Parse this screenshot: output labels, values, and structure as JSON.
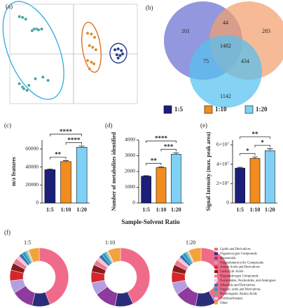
{
  "chart_data": [
    {
      "type": "scatter",
      "panel": "(a)",
      "xlim": [
        -100,
        100
      ],
      "ylim": [
        -60,
        60
      ],
      "series": [
        {
          "color": "#4aa3a0",
          "x": [
            -85,
            -80,
            -75,
            -62,
            -58,
            -55,
            -50,
            -65,
            -80,
            -78,
            -73,
            -70,
            -60,
            -48,
            -40,
            -85
          ],
          "values": [
            45,
            44,
            42,
            30,
            30,
            29,
            30,
            28,
            -40,
            -42,
            -44,
            -38,
            -30,
            -28,
            -32,
            -36
          ]
        },
        {
          "color": "#e08a2a",
          "x": [
            22,
            28,
            33,
            25,
            30,
            35,
            22,
            28,
            32,
            25
          ],
          "values": [
            25,
            24,
            20,
            10,
            8,
            5,
            -8,
            -10,
            -12,
            -18
          ]
        },
        {
          "color": "#1f3a8a",
          "x": [
            65,
            70,
            75,
            68,
            73,
            77,
            70
          ],
          "values": [
            5,
            6,
            4,
            -1,
            -2,
            0,
            -5
          ]
        }
      ]
    },
    {
      "type": "venn",
      "panel": "(b)",
      "sets": [
        {
          "name": "1:5",
          "color": "#1b1f7a",
          "circle_color": "#6a6fd0"
        },
        {
          "name": "1:10",
          "color": "#f28c1e",
          "circle_color": "#f4a06e"
        },
        {
          "name": "1:20",
          "color": "#7fd0f5",
          "circle_color": "#55c1f0"
        }
      ],
      "values": [
        101,
        283,
        1142,
        44,
        75,
        434,
        1482
      ]
    },
    {
      "type": "bar",
      "panel": "(c)",
      "ylabel": "m/z features",
      "categories": [
        "1:5",
        "1:10",
        "1:20"
      ],
      "values": [
        37000,
        46000,
        62000
      ],
      "errors": [
        800,
        1000,
        1200
      ],
      "colors": [
        "#1b1f7a",
        "#f28c1e",
        "#7fd0f5"
      ],
      "ylim": [
        0,
        70000
      ],
      "yticks": [
        0,
        20000,
        40000,
        60000
      ],
      "significance": [
        {
          "label": "**",
          "from": 0,
          "to": 1
        },
        {
          "label": "****",
          "from": 1,
          "to": 2
        },
        {
          "label": "****",
          "from": 0,
          "to": 2
        }
      ]
    },
    {
      "type": "bar",
      "panel": "(d)",
      "ylabel": "Number of metabolites identified",
      "xlabel": "Sample-Solvent Ratio",
      "categories": [
        "1:5",
        "1:10",
        "1:20"
      ],
      "values": [
        1700,
        2250,
        3100
      ],
      "errors": [
        30,
        50,
        90
      ],
      "colors": [
        "#1b1f7a",
        "#f28c1e",
        "#7fd0f5"
      ],
      "ylim": [
        0,
        4000
      ],
      "yticks": [
        0,
        1000,
        2000,
        3000,
        4000
      ],
      "significance": [
        {
          "label": "**",
          "from": 0,
          "to": 1
        },
        {
          "label": "***",
          "from": 1,
          "to": 2
        },
        {
          "label": "****",
          "from": 0,
          "to": 2
        }
      ]
    },
    {
      "type": "bar",
      "panel": "(e)",
      "ylabel": "Signal Intensity (max. peak area)",
      "categories": [
        "1:5",
        "1:10",
        "1:20"
      ],
      "values": [
        36000000,
        46000000,
        54000000
      ],
      "errors": [
        800000,
        1500000,
        2000000
      ],
      "colors": [
        "#1b1f7a",
        "#f28c1e",
        "#7fd0f5"
      ],
      "ylim": [
        0,
        65000000
      ],
      "yticks": [
        0,
        {
          "value": 20000000,
          "label": "2×10⁷"
        },
        {
          "value": 40000000,
          "label": "4×10⁷"
        },
        {
          "value": 60000000,
          "label": "6×10⁷"
        }
      ],
      "significance": [
        {
          "label": "*",
          "from": 0,
          "to": 1
        },
        {
          "label": "*",
          "from": 1,
          "to": 2
        },
        {
          "label": "**",
          "from": 0,
          "to": 2
        }
      ]
    },
    {
      "type": "donut",
      "panel": "(f)",
      "categories": [
        "Lipids and Derivatives",
        "Organooxygen Compounds",
        "Benzenoids",
        "Organoheterocyclic Compounds",
        "Amino Acids and Derivatives",
        "Carboxylic Acids",
        "Organonitrogen Compounds",
        "Nucleosides, Nucleotides, and Analogues",
        "Alkaloids and Derivatives",
        "Organic acids and Derivatives",
        "Proteinogenic Amino Acids",
        "Oxidocarbonates",
        "Other"
      ],
      "colors": [
        "#f06b8a",
        "#2b2d7c",
        "#8e3a9e",
        "#b49fe0",
        "#d6262b",
        "#8b1a1a",
        "#e57b9a",
        "#f6c3d0",
        "#3a6fb5",
        "#1fa3c4",
        "#6fb07a",
        "#e2c9e9",
        "#f4a23a"
      ],
      "series": [
        {
          "name": "1:5",
          "values": [
            44,
            10,
            12,
            7,
            6,
            4,
            3,
            2,
            2,
            2,
            1,
            1,
            6
          ]
        },
        {
          "name": "1:10",
          "values": [
            43,
            10,
            12,
            7,
            6,
            4,
            3,
            2,
            2,
            2,
            1,
            1,
            7
          ]
        },
        {
          "name": "1:20",
          "values": [
            42,
            11,
            12,
            7,
            6,
            4,
            3,
            2,
            2,
            2,
            1,
            1,
            7
          ]
        }
      ]
    }
  ]
}
